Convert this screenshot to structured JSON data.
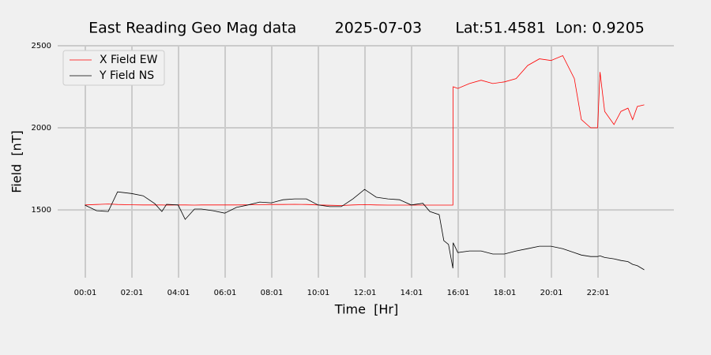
{
  "chart_data": {
    "type": "line",
    "title": "East Reading Geo Mag data        2025-07-03       Lat:51.4581  Lon: 0.9205",
    "xlabel": "Time  [Hr]",
    "ylabel": "Field  [nT]",
    "x": [
      0,
      0.5,
      1,
      1.4,
      2,
      2.5,
      3,
      3.3,
      3.5,
      4,
      4.3,
      4.7,
      5,
      5.5,
      6,
      6.5,
      7,
      7.5,
      8,
      8.5,
      9,
      9.5,
      10,
      10.5,
      11,
      11.5,
      12,
      12.5,
      13,
      13.5,
      14,
      14.5,
      14.8,
      15.2,
      15.4,
      15.6,
      15.79,
      15.8,
      16,
      16.5,
      17,
      17.5,
      18,
      18.5,
      19,
      19.5,
      20,
      20.5,
      21,
      21.3,
      21.7,
      22,
      22.1,
      22.3,
      22.7,
      23,
      23.3,
      23.5,
      23.7,
      24
    ],
    "series": [
      {
        "name": "X Field EW",
        "color": "#ff0000",
        "values": [
          1530,
          1533,
          1536,
          1533,
          1531,
          1530,
          1530,
          1530,
          1529,
          1530,
          1530,
          1529,
          1530,
          1530,
          1530,
          1530,
          1531,
          1532,
          1533,
          1533,
          1534,
          1533,
          1530,
          1528,
          1527,
          1530,
          1532,
          1530,
          1529,
          1529,
          1529,
          1529,
          1529,
          1529,
          1529,
          1529,
          1529,
          2250,
          2240,
          2270,
          2290,
          2270,
          2280,
          2300,
          2380,
          2420,
          2410,
          2440,
          2300,
          2050,
          2000,
          2000,
          2340,
          2100,
          2020,
          2100,
          2120,
          2050,
          2130,
          2140
        ]
      },
      {
        "name": "Y Field NS",
        "color": "#000000",
        "values": [
          1529,
          1495,
          1490,
          1610,
          1600,
          1586,
          1538,
          1490,
          1534,
          1530,
          1442,
          1505,
          1505,
          1495,
          1480,
          1515,
          1530,
          1548,
          1543,
          1562,
          1567,
          1567,
          1530,
          1520,
          1520,
          1567,
          1625,
          1577,
          1567,
          1562,
          1530,
          1540,
          1490,
          1471,
          1313,
          1290,
          1144,
          1300,
          1240,
          1250,
          1250,
          1231,
          1231,
          1250,
          1264,
          1279,
          1279,
          1264,
          1240,
          1225,
          1216,
          1216,
          1220,
          1210,
          1202,
          1192,
          1185,
          1168,
          1160,
          1135
        ]
      }
    ],
    "xlim": [
      -1.17,
      25.27
    ],
    "ylim": [
      1087,
      2500
    ],
    "xticks": [
      {
        "value": 0.0167,
        "label": "00:01"
      },
      {
        "value": 2.0167,
        "label": "02:01"
      },
      {
        "value": 4.0167,
        "label": "04:01"
      },
      {
        "value": 6.0167,
        "label": "06:01"
      },
      {
        "value": 8.0167,
        "label": "08:01"
      },
      {
        "value": 10.0167,
        "label": "10:01"
      },
      {
        "value": 12.0167,
        "label": "12:01"
      },
      {
        "value": 14.0167,
        "label": "14:01"
      },
      {
        "value": 16.0167,
        "label": "16:01"
      },
      {
        "value": 18.0167,
        "label": "18:01"
      },
      {
        "value": 20.0167,
        "label": "20:01"
      },
      {
        "value": 22.0167,
        "label": "22:01"
      }
    ],
    "yticks": [
      1500,
      2000,
      2500
    ],
    "grid": true,
    "legend": "upper-left"
  }
}
